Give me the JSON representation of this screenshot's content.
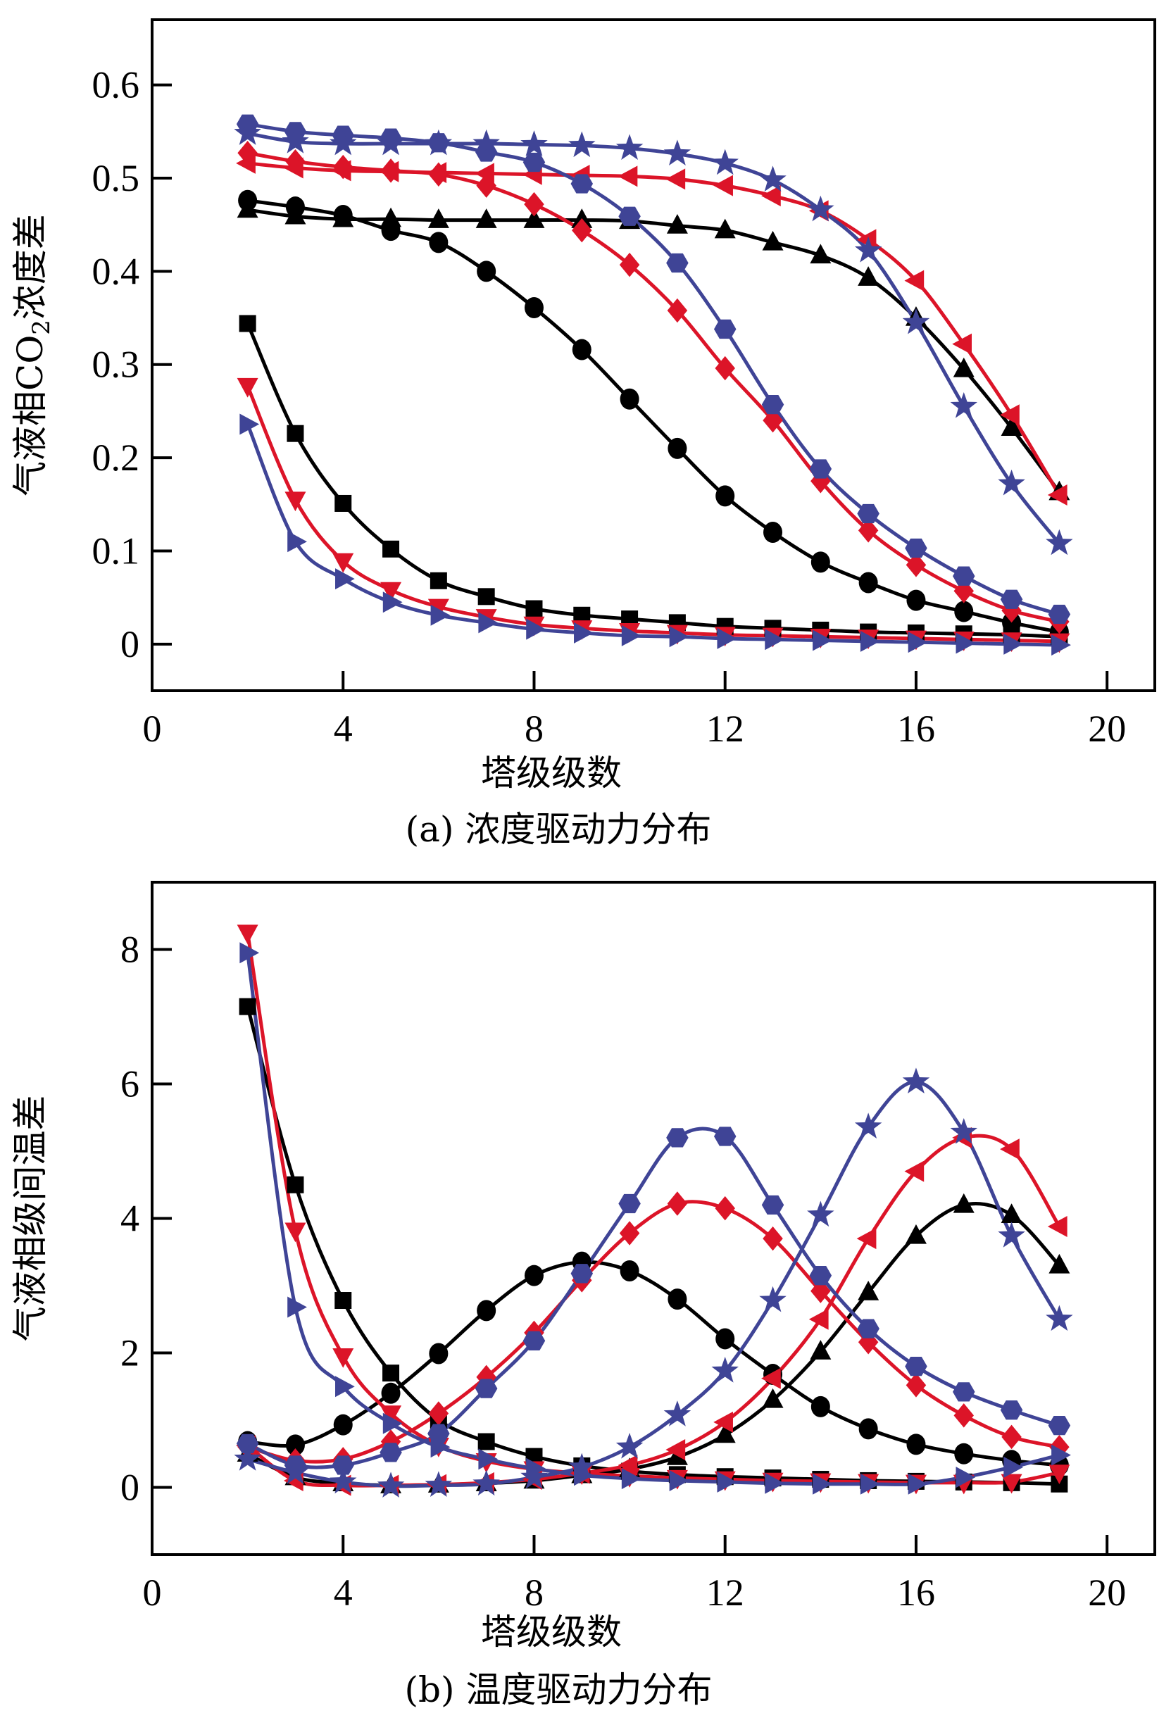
{
  "colors": {
    "black": "#000000",
    "red": "#DC1428",
    "blue": "#3F4496"
  },
  "chart_data": [
    {
      "type": "line",
      "id": "a",
      "caption": "(a) 浓度驱动力分布",
      "xlabel": "塔级级数",
      "ylabel_parts": [
        "气液相CO",
        "2",
        "浓度差"
      ],
      "xlim": [
        0,
        21
      ],
      "ylim": [
        -0.05,
        0.67
      ],
      "xticks": [
        0,
        4,
        8,
        12,
        16,
        20
      ],
      "xtick_labels": [
        "0",
        "4",
        "8",
        "12",
        "16",
        "20"
      ],
      "yticks": [
        0,
        0.1,
        0.2,
        0.3,
        0.4,
        0.5,
        0.6
      ],
      "ytick_labels": [
        "0",
        "0.1",
        "0.2",
        "0.3",
        "0.4",
        "0.5",
        "0.6"
      ],
      "grid": false,
      "legend": "none",
      "x": [
        2,
        3,
        4,
        5,
        6,
        7,
        8,
        9,
        10,
        11,
        12,
        13,
        14,
        15,
        16,
        17,
        18,
        19
      ],
      "series": [
        {
          "name": "black-square",
          "color": "black",
          "marker": "square",
          "values": [
            0.344,
            0.226,
            0.151,
            0.102,
            0.068,
            0.051,
            0.038,
            0.031,
            0.027,
            0.023,
            0.019,
            0.017,
            0.015,
            0.013,
            0.012,
            0.011,
            0.01,
            0.008
          ]
        },
        {
          "name": "black-circle",
          "color": "black",
          "marker": "circle",
          "values": [
            0.476,
            0.469,
            0.46,
            0.444,
            0.431,
            0.4,
            0.361,
            0.316,
            0.263,
            0.21,
            0.159,
            0.12,
            0.088,
            0.066,
            0.047,
            0.035,
            0.023,
            0.013
          ]
        },
        {
          "name": "black-triangle-up",
          "color": "black",
          "marker": "triangle-up",
          "values": [
            0.466,
            0.459,
            0.456,
            0.456,
            0.455,
            0.455,
            0.455,
            0.455,
            0.454,
            0.449,
            0.444,
            0.431,
            0.417,
            0.393,
            0.35,
            0.295,
            0.232,
            0.163
          ]
        },
        {
          "name": "red-triangle-down",
          "color": "red",
          "marker": "triangle-down",
          "values": [
            0.277,
            0.155,
            0.089,
            0.058,
            0.04,
            0.029,
            0.021,
            0.017,
            0.014,
            0.012,
            0.01,
            0.009,
            0.008,
            0.007,
            0.006,
            0.005,
            0.004,
            0.003
          ]
        },
        {
          "name": "red-diamond",
          "color": "red",
          "marker": "diamond",
          "values": [
            0.527,
            0.518,
            0.512,
            0.508,
            0.504,
            0.492,
            0.472,
            0.444,
            0.407,
            0.358,
            0.296,
            0.24,
            0.175,
            0.122,
            0.085,
            0.057,
            0.036,
            0.024
          ]
        },
        {
          "name": "red-triangle-left",
          "color": "red",
          "marker": "triangle-left",
          "values": [
            0.516,
            0.511,
            0.508,
            0.507,
            0.506,
            0.505,
            0.504,
            0.503,
            0.502,
            0.499,
            0.492,
            0.481,
            0.465,
            0.434,
            0.39,
            0.322,
            0.246,
            0.16
          ]
        },
        {
          "name": "blue-triangle-right",
          "color": "blue",
          "marker": "triangle-right",
          "values": [
            0.236,
            0.11,
            0.07,
            0.045,
            0.031,
            0.023,
            0.016,
            0.012,
            0.009,
            0.008,
            0.006,
            0.005,
            0.004,
            0.003,
            0.002,
            0.001,
            0.0,
            -0.001
          ]
        },
        {
          "name": "blue-hexagon",
          "color": "blue",
          "marker": "hexagon",
          "values": [
            0.558,
            0.55,
            0.546,
            0.543,
            0.538,
            0.528,
            0.517,
            0.494,
            0.459,
            0.409,
            0.338,
            0.257,
            0.188,
            0.14,
            0.103,
            0.073,
            0.048,
            0.032
          ]
        },
        {
          "name": "blue-star",
          "color": "blue",
          "marker": "star",
          "values": [
            0.548,
            0.539,
            0.537,
            0.537,
            0.537,
            0.537,
            0.536,
            0.535,
            0.532,
            0.526,
            0.516,
            0.498,
            0.466,
            0.422,
            0.345,
            0.255,
            0.172,
            0.108
          ]
        }
      ]
    },
    {
      "type": "line",
      "id": "b",
      "caption": "(b) 温度驱动力分布",
      "xlabel": "塔级级数",
      "ylabel_parts": [
        "气液相级间温差"
      ],
      "xlim": [
        0,
        21
      ],
      "ylim": [
        -1,
        9
      ],
      "xticks": [
        0,
        4,
        8,
        12,
        16,
        20
      ],
      "xtick_labels": [
        "0",
        "4",
        "8",
        "12",
        "16",
        "20"
      ],
      "yticks": [
        0,
        2,
        4,
        6,
        8
      ],
      "ytick_labels": [
        "0",
        "2",
        "4",
        "6",
        "8"
      ],
      "grid": false,
      "legend": "none",
      "x": [
        2,
        3,
        4,
        5,
        6,
        7,
        8,
        9,
        10,
        11,
        12,
        13,
        14,
        15,
        16,
        17,
        18,
        19
      ],
      "series": [
        {
          "name": "black-square",
          "color": "black",
          "marker": "square",
          "values": [
            7.15,
            4.5,
            2.78,
            1.7,
            1.0,
            0.68,
            0.46,
            0.32,
            0.24,
            0.19,
            0.16,
            0.14,
            0.12,
            0.1,
            0.09,
            0.08,
            0.07,
            0.05
          ]
        },
        {
          "name": "black-circle",
          "color": "black",
          "marker": "circle",
          "values": [
            0.68,
            0.63,
            0.93,
            1.4,
            1.99,
            2.63,
            3.15,
            3.35,
            3.22,
            2.8,
            2.21,
            1.68,
            1.2,
            0.87,
            0.64,
            0.5,
            0.4,
            0.33
          ]
        },
        {
          "name": "black-triangle-up",
          "color": "black",
          "marker": "triangle-up",
          "values": [
            0.5,
            0.15,
            0.06,
            0.03,
            0.04,
            0.06,
            0.1,
            0.18,
            0.27,
            0.45,
            0.78,
            1.3,
            2.02,
            2.9,
            3.74,
            4.2,
            4.05,
            3.3
          ]
        },
        {
          "name": "red-triangle-down",
          "color": "red",
          "marker": "triangle-down",
          "values": [
            8.25,
            3.82,
            1.95,
            1.1,
            0.62,
            0.39,
            0.27,
            0.21,
            0.17,
            0.14,
            0.12,
            0.1,
            0.09,
            0.08,
            0.07,
            0.07,
            0.08,
            0.22
          ]
        },
        {
          "name": "red-diamond",
          "color": "red",
          "marker": "diamond",
          "values": [
            0.6,
            0.4,
            0.42,
            0.68,
            1.1,
            1.64,
            2.3,
            3.08,
            3.78,
            4.22,
            4.15,
            3.7,
            2.92,
            2.16,
            1.52,
            1.07,
            0.75,
            0.6
          ]
        },
        {
          "name": "red-triangle-left",
          "color": "red",
          "marker": "triangle-left",
          "values": [
            0.62,
            0.1,
            0.03,
            0.03,
            0.04,
            0.07,
            0.12,
            0.21,
            0.33,
            0.56,
            0.97,
            1.62,
            2.5,
            3.7,
            4.7,
            5.2,
            5.03,
            3.88
          ]
        },
        {
          "name": "blue-triangle-right",
          "color": "blue",
          "marker": "triangle-right",
          "values": [
            7.95,
            2.68,
            1.5,
            0.95,
            0.6,
            0.42,
            0.28,
            0.18,
            0.13,
            0.1,
            0.08,
            0.06,
            0.05,
            0.05,
            0.05,
            0.15,
            0.3,
            0.48
          ]
        },
        {
          "name": "blue-hexagon",
          "color": "blue",
          "marker": "hexagon",
          "values": [
            0.65,
            0.33,
            0.33,
            0.52,
            0.8,
            1.47,
            2.18,
            3.18,
            4.22,
            5.2,
            5.22,
            4.2,
            3.15,
            2.36,
            1.8,
            1.42,
            1.15,
            0.92
          ]
        },
        {
          "name": "blue-star",
          "color": "blue",
          "marker": "star",
          "values": [
            0.42,
            0.22,
            0.08,
            0.02,
            0.03,
            0.05,
            0.15,
            0.3,
            0.6,
            1.08,
            1.73,
            2.78,
            4.05,
            5.36,
            6.03,
            5.28,
            3.74,
            2.5
          ]
        }
      ]
    }
  ]
}
